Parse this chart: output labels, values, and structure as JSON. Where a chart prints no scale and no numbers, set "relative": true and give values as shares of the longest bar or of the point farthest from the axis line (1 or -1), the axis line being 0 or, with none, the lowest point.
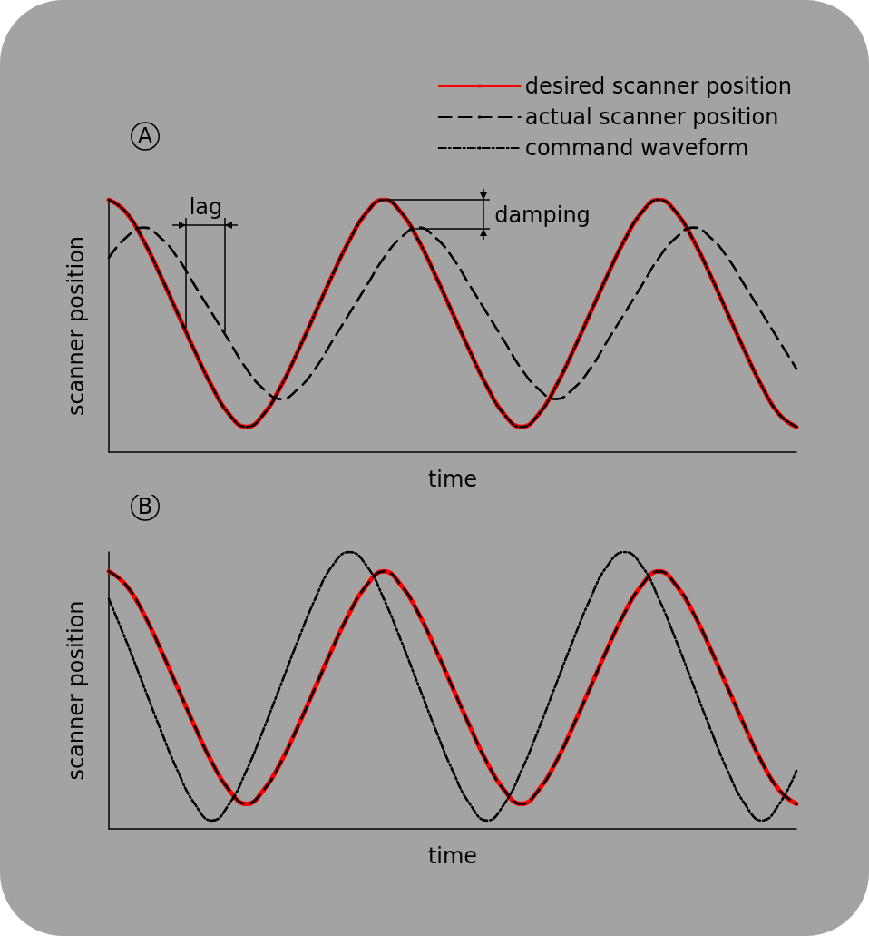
{
  "chart_data": [
    {
      "type": "line",
      "relative": true,
      "xlabel": "time",
      "ylabel": "scanner position",
      "legend": "top right",
      "grid": false,
      "marker": "none",
      "categories": [
        null,
        null,
        null,
        null,
        null,
        null,
        null,
        null,
        null,
        null,
        null,
        null,
        null,
        null,
        null,
        null,
        null,
        null,
        null,
        null,
        null,
        null,
        null,
        null,
        null,
        null,
        null,
        null,
        null,
        null,
        null,
        null,
        null,
        null,
        null,
        null,
        null,
        null,
        null,
        null,
        null
      ],
      "annotations": [
        "A",
        "lag",
        "damping"
      ],
      "series": [
        {
          "name": "desired scanner position",
          "color": "#ff0000",
          "line_style": "solid",
          "values": [
            1.0,
            0.95,
            0.84,
            0.7,
            0.55,
            0.4,
            0.26,
            0.15,
            0.1,
            0.15,
            0.26,
            0.4,
            0.55,
            0.7,
            0.84,
            0.95,
            1.0,
            0.95,
            0.84,
            0.7,
            0.55,
            0.4,
            0.26,
            0.15,
            0.1,
            0.15,
            0.26,
            0.4,
            0.55,
            0.7,
            0.84,
            0.95,
            1.0,
            0.95,
            0.84,
            0.7,
            0.55,
            0.4,
            0.26,
            0.15,
            0.1
          ]
        },
        {
          "name": "actual scanner position",
          "color": "#000000",
          "line_style": "dashed",
          "values": [
            0.77,
            0.85,
            0.89,
            0.85,
            0.77,
            0.66,
            0.55,
            0.44,
            0.33,
            0.25,
            0.21,
            0.25,
            0.33,
            0.44,
            0.55,
            0.66,
            0.77,
            0.85,
            0.89,
            0.85,
            0.77,
            0.66,
            0.55,
            0.44,
            0.33,
            0.25,
            0.21,
            0.25,
            0.33,
            0.44,
            0.55,
            0.66,
            0.77,
            0.85,
            0.89,
            0.85,
            0.77,
            0.66,
            0.55,
            0.44,
            0.33
          ]
        },
        {
          "name": "command waveform",
          "color": "#000000",
          "line_style": "dashdot",
          "values": [
            1.0,
            0.95,
            0.84,
            0.7,
            0.55,
            0.4,
            0.26,
            0.15,
            0.1,
            0.15,
            0.26,
            0.4,
            0.55,
            0.7,
            0.84,
            0.95,
            1.0,
            0.95,
            0.84,
            0.7,
            0.55,
            0.4,
            0.26,
            0.15,
            0.1,
            0.15,
            0.26,
            0.4,
            0.55,
            0.7,
            0.84,
            0.95,
            1.0,
            0.95,
            0.84,
            0.7,
            0.55,
            0.4,
            0.26,
            0.15,
            0.1
          ]
        }
      ]
    },
    {
      "type": "line",
      "relative": true,
      "xlabel": "time",
      "ylabel": "scanner position",
      "legend": false,
      "grid": false,
      "marker": "none",
      "categories": [
        null,
        null,
        null,
        null,
        null,
        null,
        null,
        null,
        null,
        null,
        null,
        null,
        null,
        null,
        null,
        null,
        null,
        null,
        null,
        null,
        null,
        null,
        null,
        null,
        null,
        null,
        null,
        null,
        null,
        null,
        null,
        null,
        null,
        null,
        null,
        null,
        null,
        null,
        null,
        null,
        null
      ],
      "annotations": [
        "B"
      ],
      "series": [
        {
          "color": "#ff0000",
          "line_style": "solid",
          "values": [
            0.93,
            0.88,
            0.78,
            0.65,
            0.51,
            0.37,
            0.24,
            0.14,
            0.09,
            0.14,
            0.24,
            0.37,
            0.51,
            0.65,
            0.78,
            0.88,
            0.93,
            0.88,
            0.78,
            0.65,
            0.51,
            0.37,
            0.24,
            0.14,
            0.09,
            0.14,
            0.24,
            0.37,
            0.51,
            0.65,
            0.78,
            0.88,
            0.93,
            0.88,
            0.78,
            0.65,
            0.51,
            0.37,
            0.24,
            0.14,
            0.09
          ]
        },
        {
          "color": "#000000",
          "line_style": "dashed",
          "values": [
            0.93,
            0.88,
            0.78,
            0.65,
            0.51,
            0.37,
            0.24,
            0.14,
            0.09,
            0.14,
            0.24,
            0.37,
            0.51,
            0.65,
            0.78,
            0.88,
            0.93,
            0.88,
            0.78,
            0.65,
            0.51,
            0.37,
            0.24,
            0.14,
            0.09,
            0.14,
            0.24,
            0.37,
            0.51,
            0.65,
            0.78,
            0.88,
            0.93,
            0.88,
            0.78,
            0.65,
            0.51,
            0.37,
            0.24,
            0.14,
            0.09
          ]
        },
        {
          "color": "#000000",
          "line_style": "dashdot",
          "values": [
            0.83,
            0.68,
            0.52,
            0.36,
            0.21,
            0.09,
            0.03,
            0.09,
            0.21,
            0.36,
            0.52,
            0.68,
            0.83,
            0.95,
            1.0,
            0.95,
            0.83,
            0.68,
            0.52,
            0.36,
            0.21,
            0.09,
            0.03,
            0.09,
            0.21,
            0.36,
            0.52,
            0.68,
            0.83,
            0.95,
            1.0,
            0.95,
            0.83,
            0.68,
            0.52,
            0.36,
            0.21,
            0.09,
            0.03,
            0.09,
            0.21
          ]
        }
      ]
    }
  ]
}
